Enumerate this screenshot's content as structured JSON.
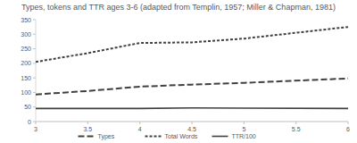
{
  "chart_data": {
    "type": "line",
    "title": "Types, tokens and TTR ages 3-6 (adapted from Templin, 1957; Miller & Chapman, 1981)",
    "x": [
      3,
      3.5,
      4,
      4.5,
      5,
      6
    ],
    "series": [
      {
        "name": "Types",
        "color": "#404040",
        "line_style": "dashed",
        "values": [
          93,
          105,
          120,
          127,
          133,
          148
        ]
      },
      {
        "name": "Total Words",
        "color": "#404040",
        "line_style": "dotted",
        "values": [
          205,
          235,
          270,
          272,
          285,
          325
        ]
      },
      {
        "name": "TTR/100",
        "color": "#404040",
        "line_style": "solid",
        "values": [
          45,
          45,
          45,
          47,
          46,
          45
        ]
      }
    ],
    "xlim": [
      3,
      6
    ],
    "xticks": [
      3,
      3.5,
      4,
      4.5,
      5,
      5.5,
      6
    ],
    "ylim": [
      0,
      350
    ],
    "yticks": [
      0,
      50,
      100,
      150,
      200,
      250,
      300,
      350
    ],
    "grid": false,
    "legend": "bottom"
  }
}
